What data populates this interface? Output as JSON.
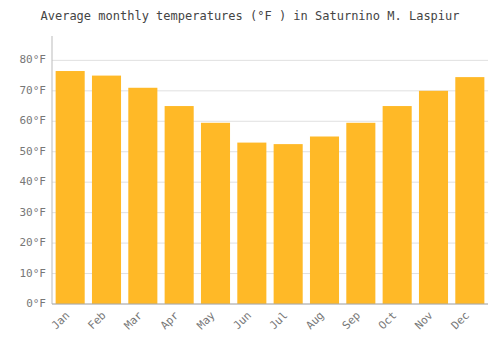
{
  "chart_data": {
    "type": "bar",
    "title": "Average monthly temperatures (°F ) in Saturnino M. Laspiur",
    "categories": [
      "Jan",
      "Feb",
      "Mar",
      "Apr",
      "May",
      "Jun",
      "Jul",
      "Aug",
      "Sep",
      "Oct",
      "Nov",
      "Dec"
    ],
    "values": [
      76.5,
      75.0,
      71.0,
      65.0,
      59.5,
      53.0,
      52.5,
      55.0,
      59.5,
      65.0,
      70.0,
      74.5
    ],
    "color": "#FFB927",
    "ylim": [
      0,
      88
    ],
    "yticks": [
      {
        "value": 0,
        "label": "0°F"
      },
      {
        "value": 10,
        "label": "10°F"
      },
      {
        "value": 20,
        "label": "20°F"
      },
      {
        "value": 30,
        "label": "30°F"
      },
      {
        "value": 40,
        "label": "40°F"
      },
      {
        "value": 50,
        "label": "50°F"
      },
      {
        "value": 60,
        "label": "60°F"
      },
      {
        "value": 70,
        "label": "70°F"
      },
      {
        "value": 80,
        "label": "80°F"
      }
    ],
    "grid": true
  }
}
